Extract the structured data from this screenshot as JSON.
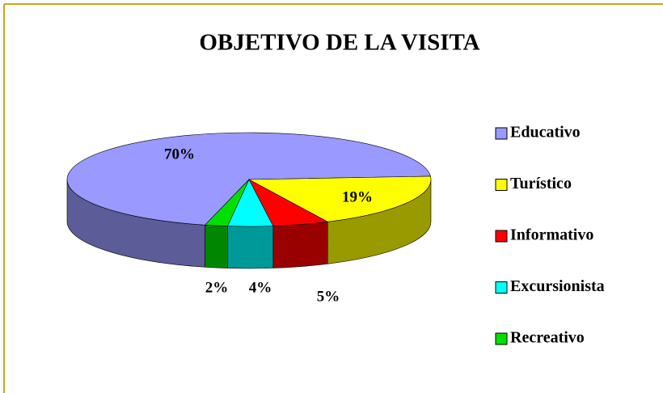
{
  "chart_data": {
    "type": "pie",
    "title": "OBJETIVO DE LA VISITA",
    "categories": [
      "Educativo",
      "Turístico",
      "Informativo",
      "Excursionista",
      "Recreativo"
    ],
    "values": [
      70,
      19,
      5,
      4,
      2
    ],
    "value_labels": [
      "70%",
      "19%",
      "5%",
      "4%",
      "2%"
    ],
    "colors": [
      "#9999ff",
      "#ffff00",
      "#ff0000",
      "#00ffff",
      "#00e000"
    ]
  }
}
